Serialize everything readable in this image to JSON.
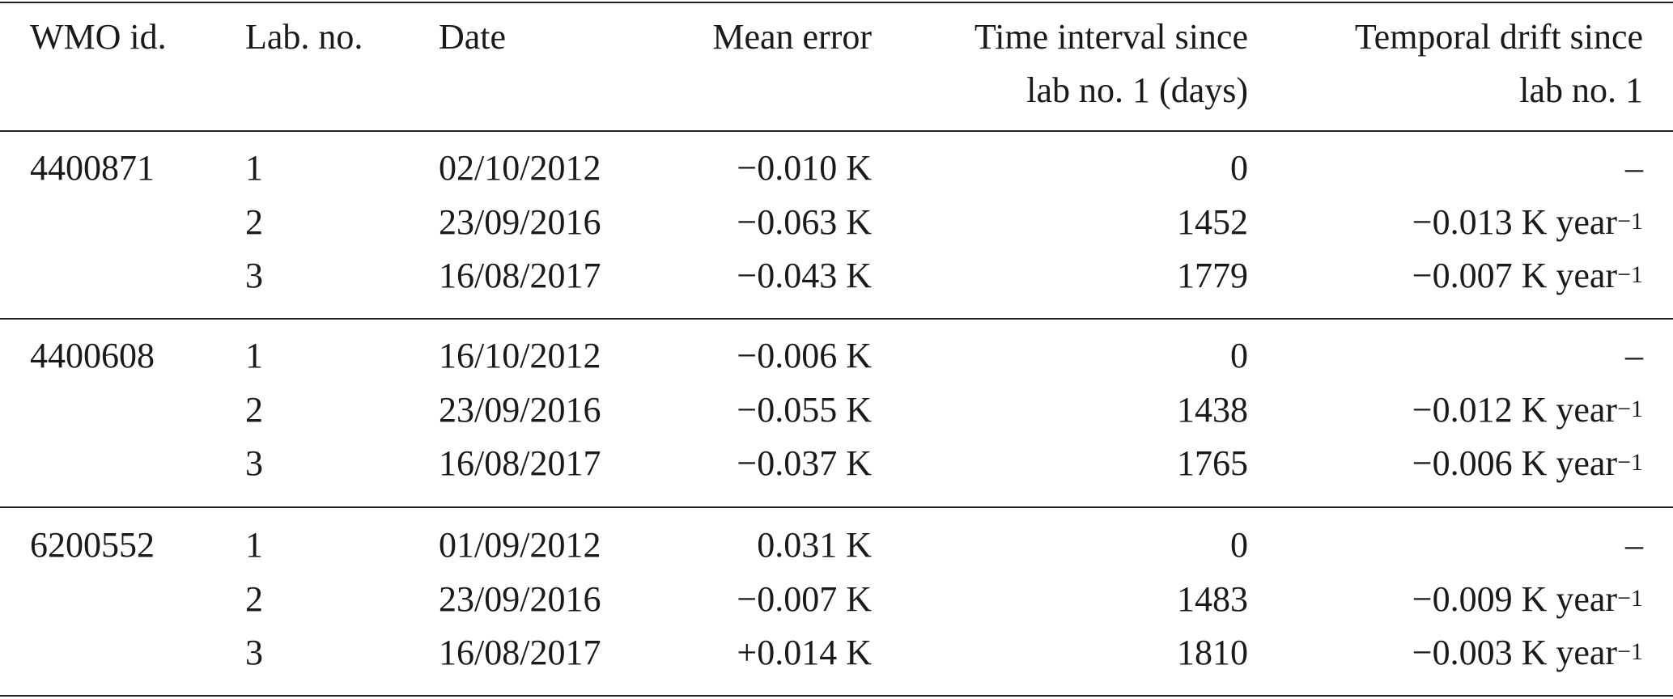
{
  "table": {
    "columns": [
      [
        "WMO id."
      ],
      [
        "Lab. no."
      ],
      [
        "Date"
      ],
      [
        "Mean error"
      ],
      [
        "Time interval since",
        "lab no. 1 (days)"
      ],
      [
        "Temporal drift since",
        "lab no. 1"
      ]
    ],
    "groups": [
      {
        "wmo_id": "4400871",
        "rows": [
          {
            "lab": "1",
            "date": "02/10/2012",
            "mean_error": "−0.010 K",
            "interval": "0",
            "drift": "–"
          },
          {
            "lab": "2",
            "date": "23/09/2016",
            "mean_error": "−0.063 K",
            "interval": "1452",
            "drift": {
              "text": "−0.013 K year",
              "sup": "−1"
            }
          },
          {
            "lab": "3",
            "date": "16/08/2017",
            "mean_error": "−0.043 K",
            "interval": "1779",
            "drift": {
              "text": "−0.007 K year",
              "sup": "−1"
            }
          }
        ]
      },
      {
        "wmo_id": "4400608",
        "rows": [
          {
            "lab": "1",
            "date": "16/10/2012",
            "mean_error": "−0.006 K",
            "interval": "0",
            "drift": "–"
          },
          {
            "lab": "2",
            "date": "23/09/2016",
            "mean_error": "−0.055 K",
            "interval": "1438",
            "drift": {
              "text": "−0.012 K year",
              "sup": "−1"
            }
          },
          {
            "lab": "3",
            "date": "16/08/2017",
            "mean_error": "−0.037 K",
            "interval": "1765",
            "drift": {
              "text": "−0.006 K year",
              "sup": "−1"
            }
          }
        ]
      },
      {
        "wmo_id": "6200552",
        "rows": [
          {
            "lab": "1",
            "date": "01/09/2012",
            "mean_error": "0.031 K",
            "interval": "0",
            "drift": "–"
          },
          {
            "lab": "2",
            "date": "23/09/2016",
            "mean_error": "−0.007 K",
            "interval": "1483",
            "drift": {
              "text": "−0.009 K year",
              "sup": "−1"
            }
          },
          {
            "lab": "3",
            "date": "16/08/2017",
            "mean_error": "+0.014 K",
            "interval": "1810",
            "drift": {
              "text": "−0.003 K year",
              "sup": "−1"
            }
          }
        ]
      }
    ]
  }
}
